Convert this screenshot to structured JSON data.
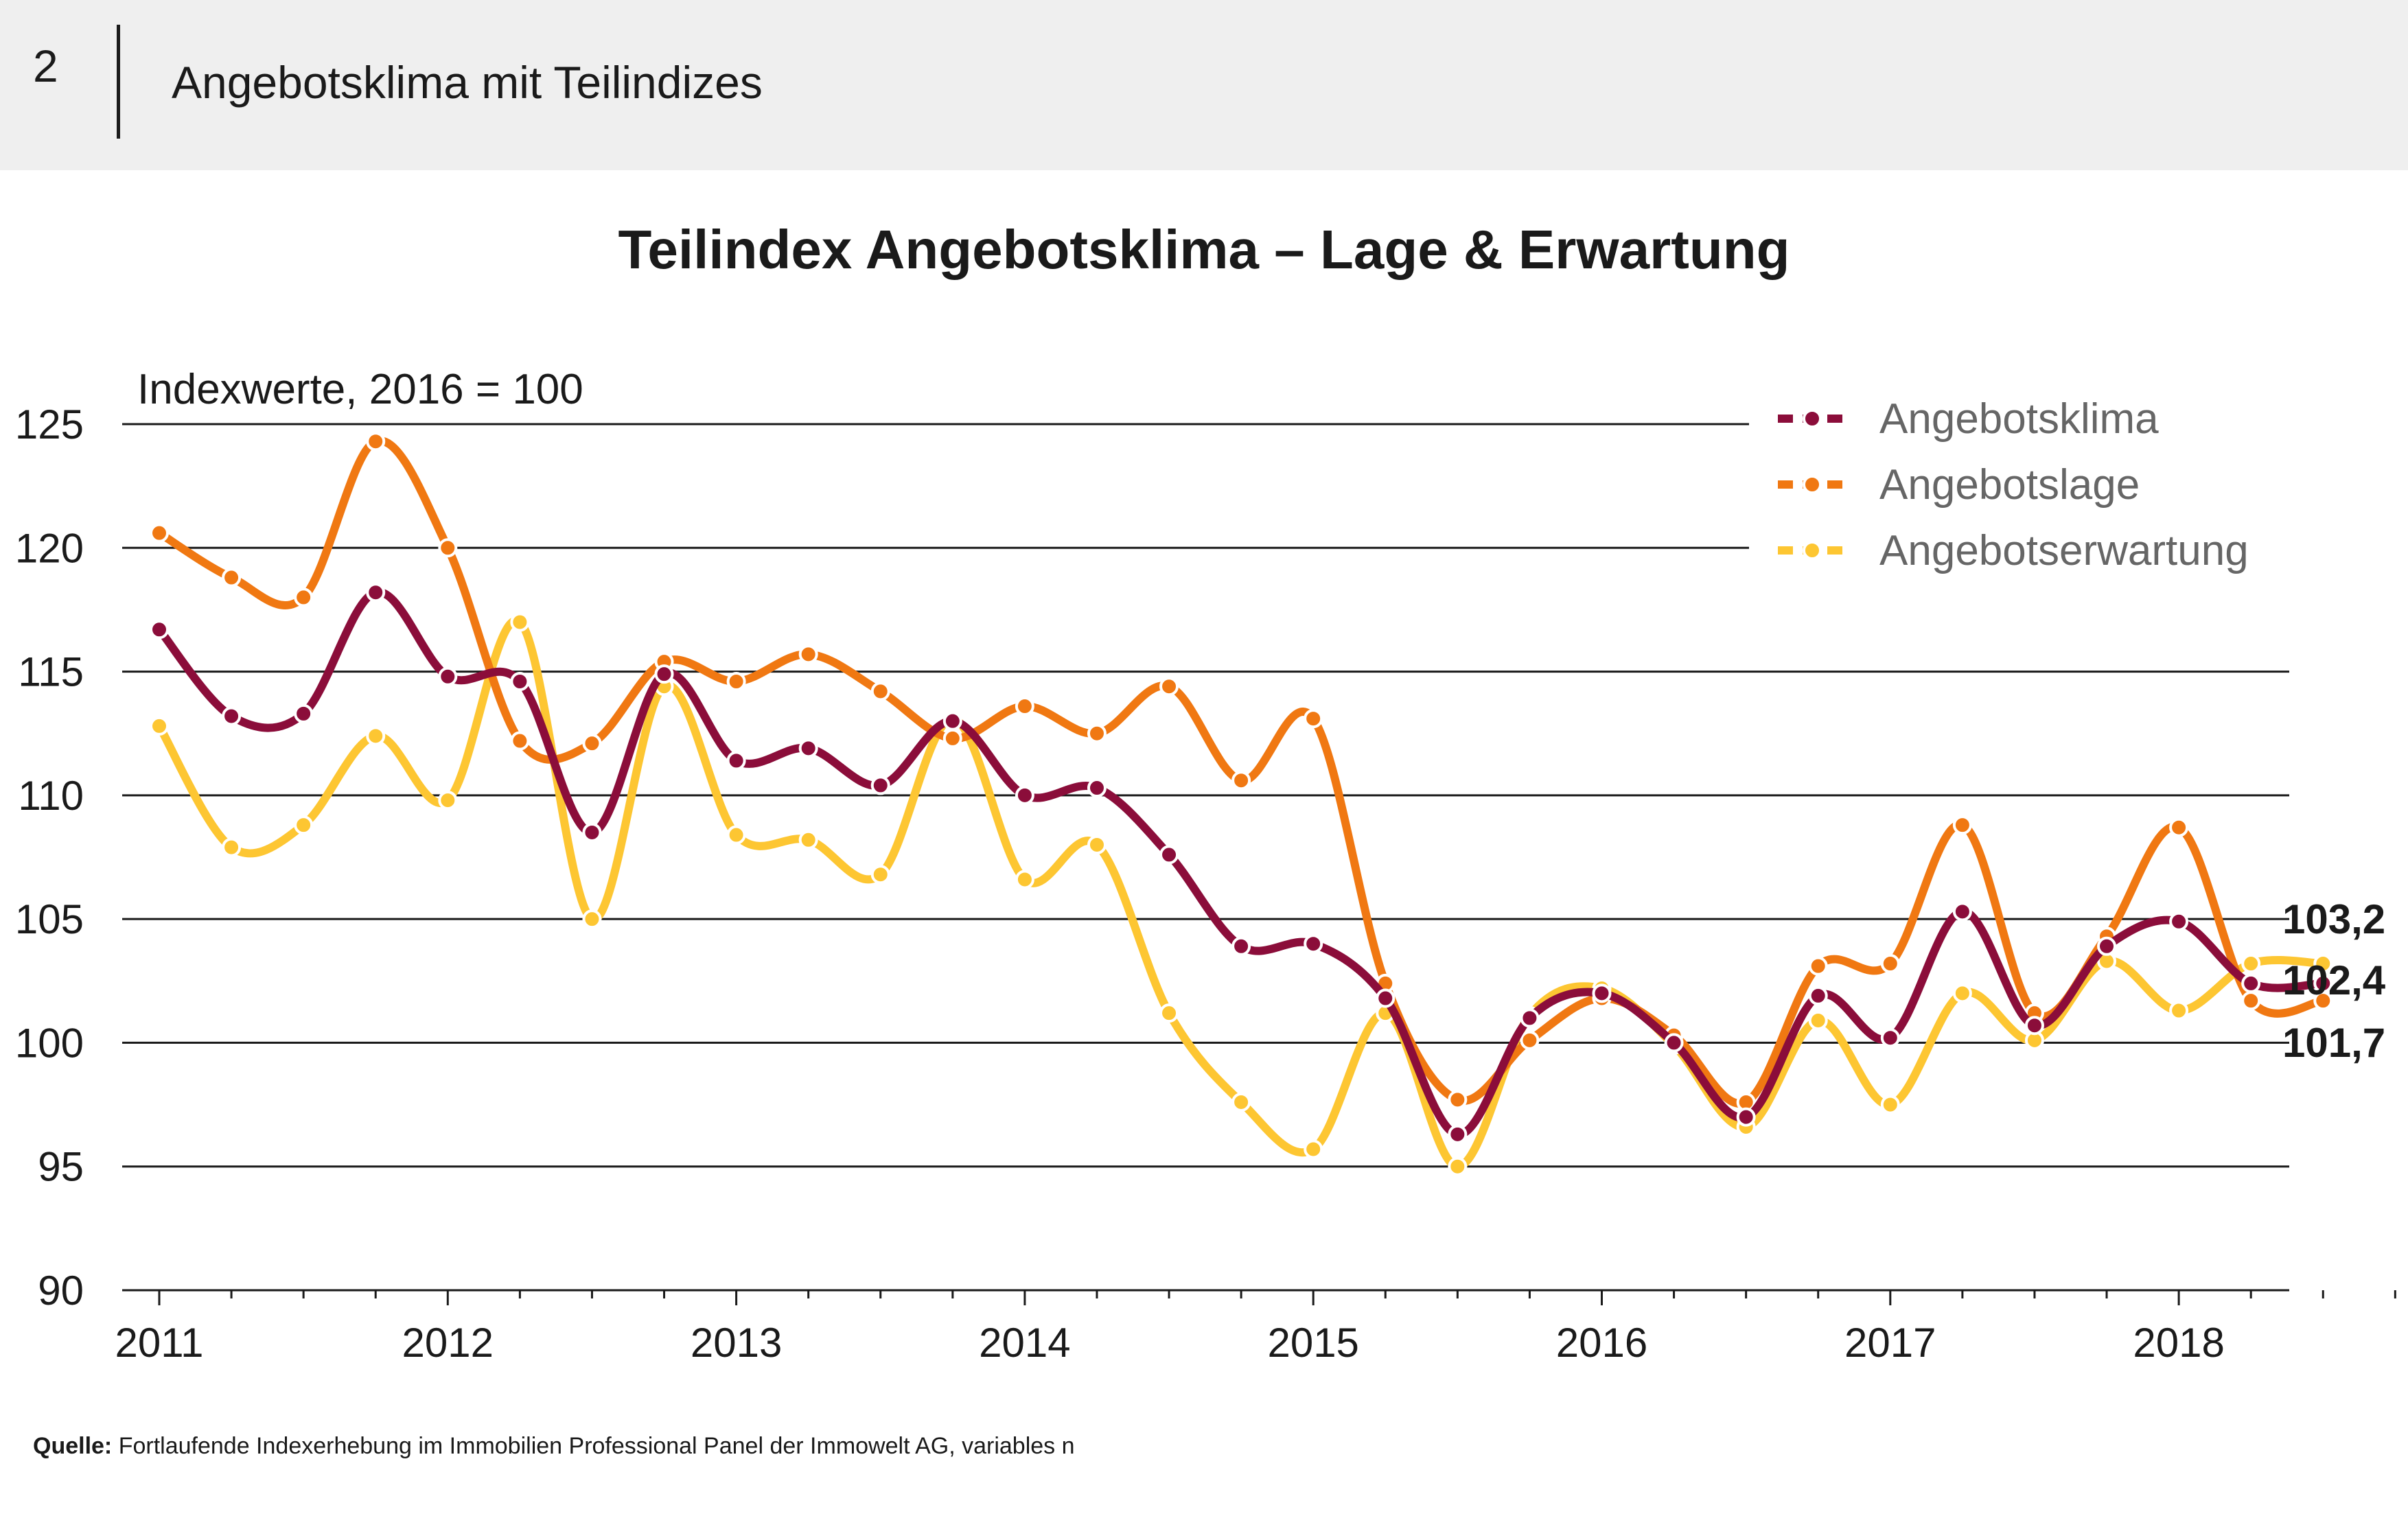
{
  "header": {
    "figure_number": "2",
    "title": "Angebotsklima mit Teilindizes"
  },
  "source": {
    "label": "Quelle:",
    "text": "Fortlaufende Indexerhebung im Immobilien Professional Panel der Immowelt AG, variables n"
  },
  "chart_data": {
    "type": "line",
    "title": "Teilindex Angebotsklima – Lage & Erwartung",
    "ylabel": "Indexwerte, 2016 = 100",
    "xlabel": "",
    "ylim": [
      90,
      125
    ],
    "yticks": [
      90,
      95,
      100,
      105,
      110,
      115,
      120,
      125
    ],
    "xlim": [
      2011,
      2018.75
    ],
    "xticks": [
      2011,
      2012,
      2013,
      2014,
      2015,
      2016,
      2017,
      2018
    ],
    "grid": "horizontal",
    "legend_position": "top-right",
    "x": [
      2011.0,
      2011.25,
      2011.5,
      2011.75,
      2012.0,
      2012.25,
      2012.5,
      2012.75,
      2013.0,
      2013.25,
      2013.5,
      2013.75,
      2014.0,
      2014.25,
      2014.5,
      2014.75,
      2015.0,
      2015.25,
      2015.5,
      2015.75,
      2016.0,
      2016.25,
      2016.5,
      2016.75,
      2017.0,
      2017.25,
      2017.5,
      2017.75,
      2018.0,
      2018.25,
      2018.5
    ],
    "series": [
      {
        "name": "Angebotsklima",
        "color": "#8b0d3a",
        "values": [
          116.7,
          113.2,
          113.3,
          118.2,
          114.8,
          114.6,
          108.5,
          114.9,
          111.4,
          111.9,
          110.4,
          113.0,
          110.0,
          110.3,
          107.6,
          103.9,
          104.0,
          101.8,
          96.3,
          101.0,
          102.0,
          100.0,
          97.0,
          101.9,
          100.2,
          105.3,
          100.7,
          103.9,
          104.9,
          102.4,
          102.4
        ],
        "end_label": "102,4"
      },
      {
        "name": "Angebotslage",
        "color": "#f07812",
        "values": [
          120.6,
          118.8,
          118.0,
          124.3,
          120.0,
          112.2,
          112.1,
          115.4,
          114.6,
          115.7,
          114.2,
          112.3,
          113.6,
          112.5,
          114.4,
          110.6,
          113.1,
          102.4,
          97.7,
          100.1,
          101.8,
          100.3,
          97.6,
          103.1,
          103.2,
          108.8,
          101.2,
          104.3,
          108.7,
          101.7,
          101.7
        ],
        "end_label": "101,7"
      },
      {
        "name": "Angebotserwartung",
        "color": "#fdc632",
        "values": [
          112.8,
          107.9,
          108.8,
          112.4,
          109.8,
          117.0,
          105.0,
          114.4,
          108.4,
          108.2,
          106.8,
          113.1,
          106.6,
          108.0,
          101.2,
          97.6,
          95.7,
          101.2,
          95.0,
          101.1,
          102.2,
          99.9,
          96.6,
          100.9,
          97.5,
          102.0,
          100.1,
          103.3,
          101.3,
          103.2,
          103.2
        ],
        "end_label": "103,2"
      }
    ]
  }
}
